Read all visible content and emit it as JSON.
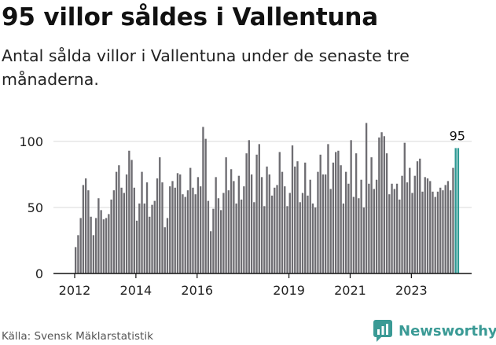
{
  "title": "95 villor såldes i Vallentuna",
  "subtitle": "Antal sålda villor i Vallentuna under de senaste tre månaderna.",
  "source": "Källa: Svensk Mäklarstatistik",
  "brand": {
    "name": "Newsworthy",
    "icon": "newsworthy-chart-icon",
    "color": "#3a9a95"
  },
  "colors": {
    "bar": "#6e6d72",
    "highlight": "#2e9a94",
    "axis": "#111111",
    "grid": "#d9d9d9"
  },
  "chart_data": {
    "type": "bar",
    "title": "95 villor såldes i Vallentuna",
    "xlabel": "",
    "ylabel": "",
    "ylim": [
      0,
      115
    ],
    "y_ticks": [
      0,
      50,
      100
    ],
    "x_ticks": [
      "2012",
      "2014",
      "2016",
      "2019",
      "2021",
      "2023"
    ],
    "x_tick_index": [
      0,
      24,
      48,
      84,
      108,
      132
    ],
    "highlight_label": "95",
    "highlight_count": 2,
    "start_month": "2012-01",
    "values": [
      20,
      29,
      42,
      67,
      72,
      63,
      43,
      29,
      42,
      57,
      48,
      41,
      42,
      45,
      56,
      63,
      77,
      82,
      65,
      61,
      75,
      93,
      86,
      65,
      40,
      53,
      77,
      53,
      69,
      43,
      52,
      55,
      72,
      88,
      69,
      35,
      42,
      66,
      70,
      65,
      76,
      75,
      60,
      58,
      63,
      80,
      65,
      60,
      73,
      66,
      111,
      102,
      55,
      32,
      49,
      73,
      57,
      48,
      61,
      88,
      63,
      79,
      70,
      53,
      74,
      56,
      66,
      91,
      101,
      75,
      54,
      90,
      98,
      73,
      51,
      81,
      75,
      59,
      65,
      67,
      92,
      77,
      66,
      51,
      61,
      97,
      81,
      85,
      54,
      61,
      84,
      59,
      71,
      53,
      50,
      77,
      90,
      75,
      75,
      98,
      64,
      84,
      92,
      93,
      82,
      53,
      77,
      68,
      101,
      58,
      91,
      57,
      71,
      50,
      114,
      68,
      88,
      64,
      71,
      103,
      107,
      104,
      91,
      60,
      68,
      64,
      68,
      56,
      74,
      99,
      69,
      80,
      61,
      74,
      85,
      87,
      62,
      73,
      72,
      70,
      62,
      58,
      62,
      65,
      63,
      67,
      70,
      63,
      80,
      95,
      95
    ],
    "bar_count_note": "monthly bars, last two highlighted"
  }
}
